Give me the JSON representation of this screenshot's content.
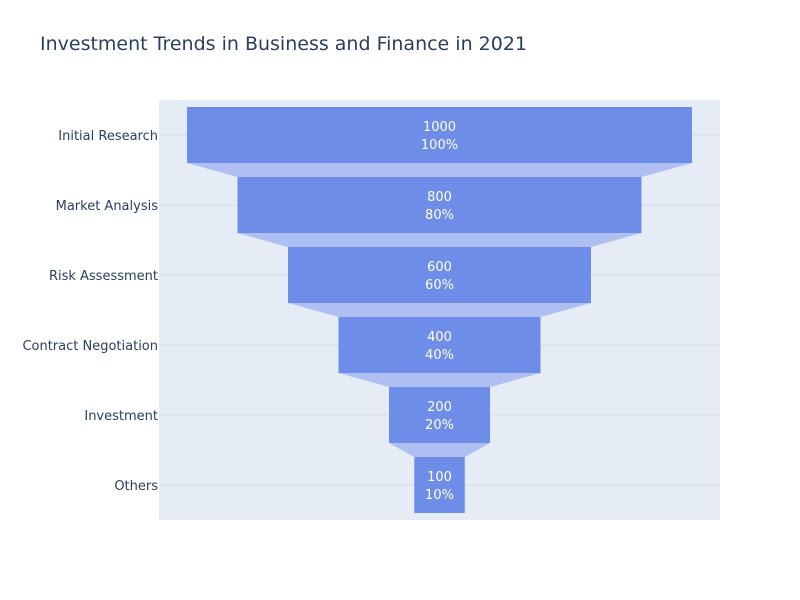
{
  "chart_data": {
    "type": "funnel",
    "title": "Investment Trends in Business and Finance in 2021",
    "categories": [
      "Initial Research",
      "Market Analysis",
      "Risk Assessment",
      "Contract Negotiation",
      "Investment",
      "Others"
    ],
    "values": [
      1000,
      800,
      600,
      400,
      200,
      100
    ],
    "percent_labels": [
      "100%",
      "80%",
      "60%",
      "40%",
      "20%",
      "10%"
    ],
    "colors": {
      "bar": "#6d8de8",
      "connector": "#afbff2",
      "plot_background": "#e5ecf6",
      "gridline": "#d7deea",
      "text": "#2a3f5f",
      "bar_text": "#ffffff"
    },
    "grid": true,
    "legend": "none"
  }
}
